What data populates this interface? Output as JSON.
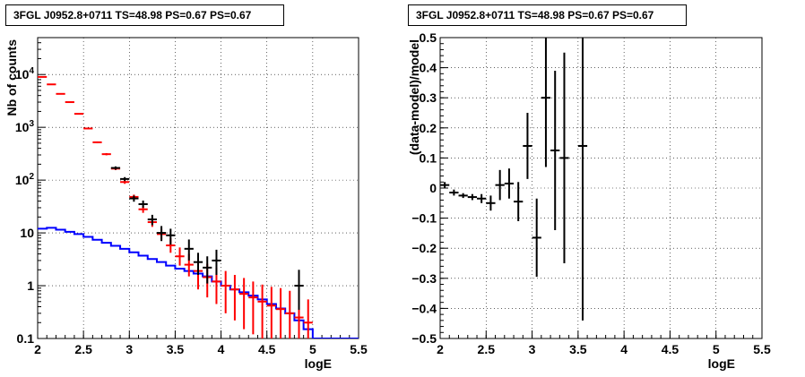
{
  "chart_data": [
    {
      "type": "step+errorbar",
      "title": "3FGL J0952.8+0711 TS=48.98 PS=0.67 PS=0.67",
      "xlabel": "logE",
      "ylabel": "Nb of counts",
      "xlim": [
        2,
        5.5
      ],
      "ylim": [
        0.1,
        50000
      ],
      "yscale": "log",
      "grid": true,
      "x_ticks": [
        "2",
        "2.5",
        "3",
        "3.5",
        "4",
        "4.5",
        "5",
        "5.5"
      ],
      "y_ticks": [
        "0.1",
        "1",
        "10",
        "10^2",
        "10^3",
        "10^4"
      ],
      "series": [
        {
          "style": "step",
          "color": "#0000ff",
          "bin_edges": [
            2.0,
            2.1,
            2.2,
            2.3,
            2.4,
            2.5,
            2.6,
            2.7,
            2.8,
            2.9,
            3.0,
            3.1,
            3.2,
            3.3,
            3.4,
            3.5,
            3.6,
            3.7,
            3.8,
            3.9,
            4.0,
            4.1,
            4.2,
            4.3,
            4.4,
            4.5,
            4.6,
            4.7,
            4.8,
            4.9,
            5.0,
            5.1,
            5.2,
            5.3,
            5.4,
            5.5
          ],
          "values": [
            12,
            12.5,
            11.5,
            10.5,
            9.5,
            8.4,
            7.4,
            6.5,
            5.7,
            5.0,
            4.3,
            3.7,
            3.2,
            2.8,
            2.4,
            2.1,
            1.9,
            1.7,
            1.5,
            1.2,
            1.0,
            0.85,
            0.75,
            0.65,
            0.55,
            0.45,
            0.37,
            0.3,
            0.22,
            0.15,
            0.1,
            0.1,
            0.1,
            0.1,
            0.1
          ]
        },
        {
          "style": "errorbar",
          "color": "#ff0000",
          "x": [
            2.05,
            2.15,
            2.25,
            2.35,
            2.45,
            2.55,
            2.65,
            2.75,
            2.85,
            2.95,
            3.05,
            3.15,
            3.25,
            3.35,
            3.45,
            3.55,
            3.65,
            3.75,
            3.85,
            3.95,
            4.05,
            4.15,
            4.25,
            4.35,
            4.45,
            4.55,
            4.65,
            4.75,
            4.85,
            4.95
          ],
          "y": [
            9000,
            6500,
            4300,
            3000,
            1800,
            950,
            520,
            310,
            165,
            92,
            48,
            28,
            16,
            9.5,
            5.8,
            3.6,
            2.5,
            1.9,
            1.45,
            1.2,
            1.0,
            0.85,
            0.7,
            0.6,
            0.5,
            0.42,
            0.36,
            0.3,
            0.25,
            0.2
          ],
          "y_low": [
            8900,
            6400,
            4240,
            2950,
            1760,
            920,
            500,
            295,
            155,
            85,
            43,
            24,
            13,
            7.5,
            4.2,
            2.4,
            1.5,
            0.85,
            0.6,
            0.45,
            0.3,
            0.22,
            0.15,
            0.12,
            0.1,
            0.1,
            0.1,
            0.1,
            0.1,
            0.1
          ],
          "y_high": [
            9100,
            6600,
            4360,
            3050,
            1840,
            980,
            540,
            325,
            175,
            99,
            53,
            32,
            19,
            12,
            8,
            5.3,
            4,
            3.4,
            2.6,
            2.2,
            1.9,
            1.6,
            1.4,
            1.2,
            1.05,
            0.95,
            0.9,
            0.8,
            0.75,
            0.55
          ]
        },
        {
          "style": "errorbar",
          "color": "#000000",
          "x": [
            2.85,
            2.95,
            3.05,
            3.15,
            3.25,
            3.35,
            3.45,
            3.65,
            3.75,
            3.85,
            3.95,
            4.85
          ],
          "y": [
            170,
            105,
            45,
            35,
            18,
            10,
            9,
            5,
            2.8,
            2.2,
            3,
            1
          ],
          "y_low": [
            158,
            96,
            39,
            30,
            14,
            7,
            6,
            3,
            1.6,
            1.1,
            1.6,
            0.35
          ],
          "y_high": [
            182,
            114,
            51,
            41,
            22,
            13.5,
            12,
            7.5,
            4.2,
            3.6,
            4.8,
            2
          ]
        }
      ]
    },
    {
      "type": "errorbar",
      "title": "3FGL J0952.8+0711 TS=48.98 PS=0.67 PS=0.67",
      "xlabel": "logE",
      "ylabel": "(data-model)/model",
      "xlim": [
        2,
        5.5
      ],
      "ylim": [
        -0.5,
        0.5
      ],
      "grid": true,
      "x_ticks": [
        "2",
        "2.5",
        "3",
        "3.5",
        "4",
        "4.5",
        "5",
        "5.5"
      ],
      "y_ticks": [
        "-0.5",
        "-0.4",
        "-0.3",
        "-0.2",
        "-0.1",
        "0",
        "0.1",
        "0.2",
        "0.3",
        "0.4",
        "0.5"
      ],
      "series": [
        {
          "style": "errorbar",
          "color": "#000000",
          "x": [
            2.05,
            2.15,
            2.25,
            2.35,
            2.45,
            2.55,
            2.65,
            2.75,
            2.85,
            2.95,
            3.05,
            3.15,
            3.25,
            3.35,
            3.55
          ],
          "y": [
            0.01,
            -0.015,
            -0.025,
            -0.03,
            -0.035,
            -0.05,
            0.01,
            0.015,
            -0.045,
            0.14,
            -0.165,
            0.3,
            0.125,
            0.1,
            0.14
          ],
          "y_low": [
            0.0,
            -0.025,
            -0.033,
            -0.04,
            -0.05,
            -0.075,
            -0.04,
            -0.035,
            -0.11,
            0.03,
            -0.295,
            0.07,
            -0.14,
            -0.25,
            -0.44
          ],
          "y_high": [
            0.02,
            -0.005,
            -0.017,
            -0.02,
            -0.02,
            -0.025,
            0.06,
            0.065,
            0.02,
            0.25,
            -0.035,
            0.55,
            0.39,
            0.45,
            0.55
          ]
        }
      ]
    }
  ]
}
